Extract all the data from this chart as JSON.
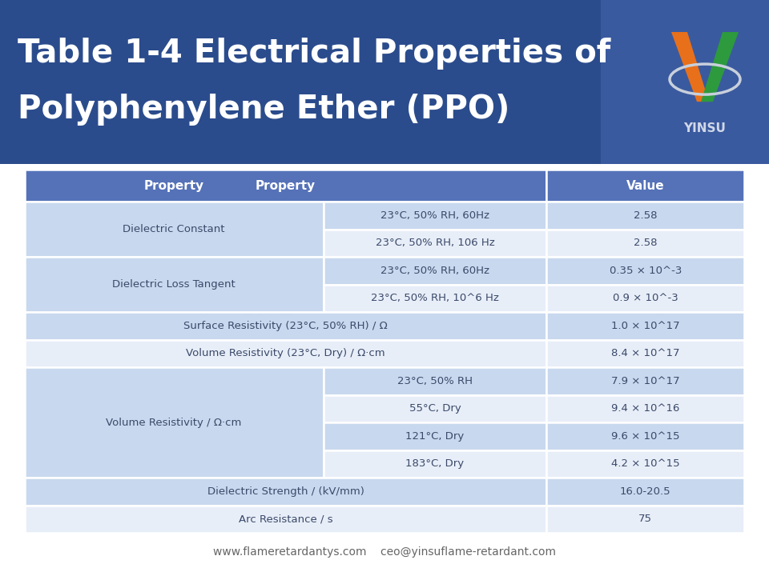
{
  "title_line1": "Table 1-4 Electrical Properties of",
  "title_line2": "Polyphenylene Ether (PPO)",
  "title_bg": "#2B4C8C",
  "title_bg_right": "#3A5A9A",
  "title_text_color": "#FFFFFF",
  "header_bg": "#5572B8",
  "header_text_color": "#FFFFFF",
  "light_bg": "#C8D8EE",
  "white_bg": "#E8EEF8",
  "row_text_color": "#3A4A6A",
  "border_color": "#FFFFFF",
  "footer_text": "www.flameretardantys.com    ceo@yinsuflame-retardant.com",
  "footer_color": "#666666",
  "col_split1": 0.415,
  "col_split2": 0.725,
  "rows": [
    {
      "type": "header",
      "col1": "Property",
      "col2": "",
      "col3": "Value"
    },
    {
      "type": "span_start",
      "span": 2,
      "col1": "Dielectric Constant",
      "col2": "23°C, 50% RH, 60Hz",
      "col3": "2.58",
      "bg": "light"
    },
    {
      "type": "span_cont",
      "col2": "23°C, 50% RH, 106 Hz",
      "col3": "2.58",
      "bg": "white"
    },
    {
      "type": "span_start",
      "span": 2,
      "col1": "Dielectric Loss Tangent",
      "col2": "23°C, 50% RH, 60Hz",
      "col3": "0.35 × 10^-3",
      "bg": "light"
    },
    {
      "type": "span_cont",
      "col2": "23°C, 50% RH, 10^6 Hz",
      "col3": "0.9 × 10^-3",
      "bg": "white"
    },
    {
      "type": "single",
      "col1": "Surface Resistivity (23°C, 50% RH) / Ω",
      "col3": "1.0 × 10^17",
      "bg": "light"
    },
    {
      "type": "single",
      "col1": "Volume Resistivity (23°C, Dry) / Ω·cm",
      "col3": "8.4 × 10^17",
      "bg": "white"
    },
    {
      "type": "span_start",
      "span": 4,
      "col1": "Volume Resistivity / Ω·cm",
      "col2": "23°C, 50% RH",
      "col3": "7.9 × 10^17",
      "bg": "light"
    },
    {
      "type": "span_cont",
      "col2": "55°C, Dry",
      "col3": "9.4 × 10^16",
      "bg": "white"
    },
    {
      "type": "span_cont",
      "col2": "121°C, Dry",
      "col3": "9.6 × 10^15",
      "bg": "light"
    },
    {
      "type": "span_cont",
      "col2": "183°C, Dry",
      "col3": "4.2 × 10^15",
      "bg": "white"
    },
    {
      "type": "single",
      "col1": "Dielectric Strength / (kV/mm)",
      "col3": "16.0-20.5",
      "bg": "light"
    },
    {
      "type": "single",
      "col1": "Arc Resistance / s",
      "col3": "75",
      "bg": "white"
    }
  ]
}
